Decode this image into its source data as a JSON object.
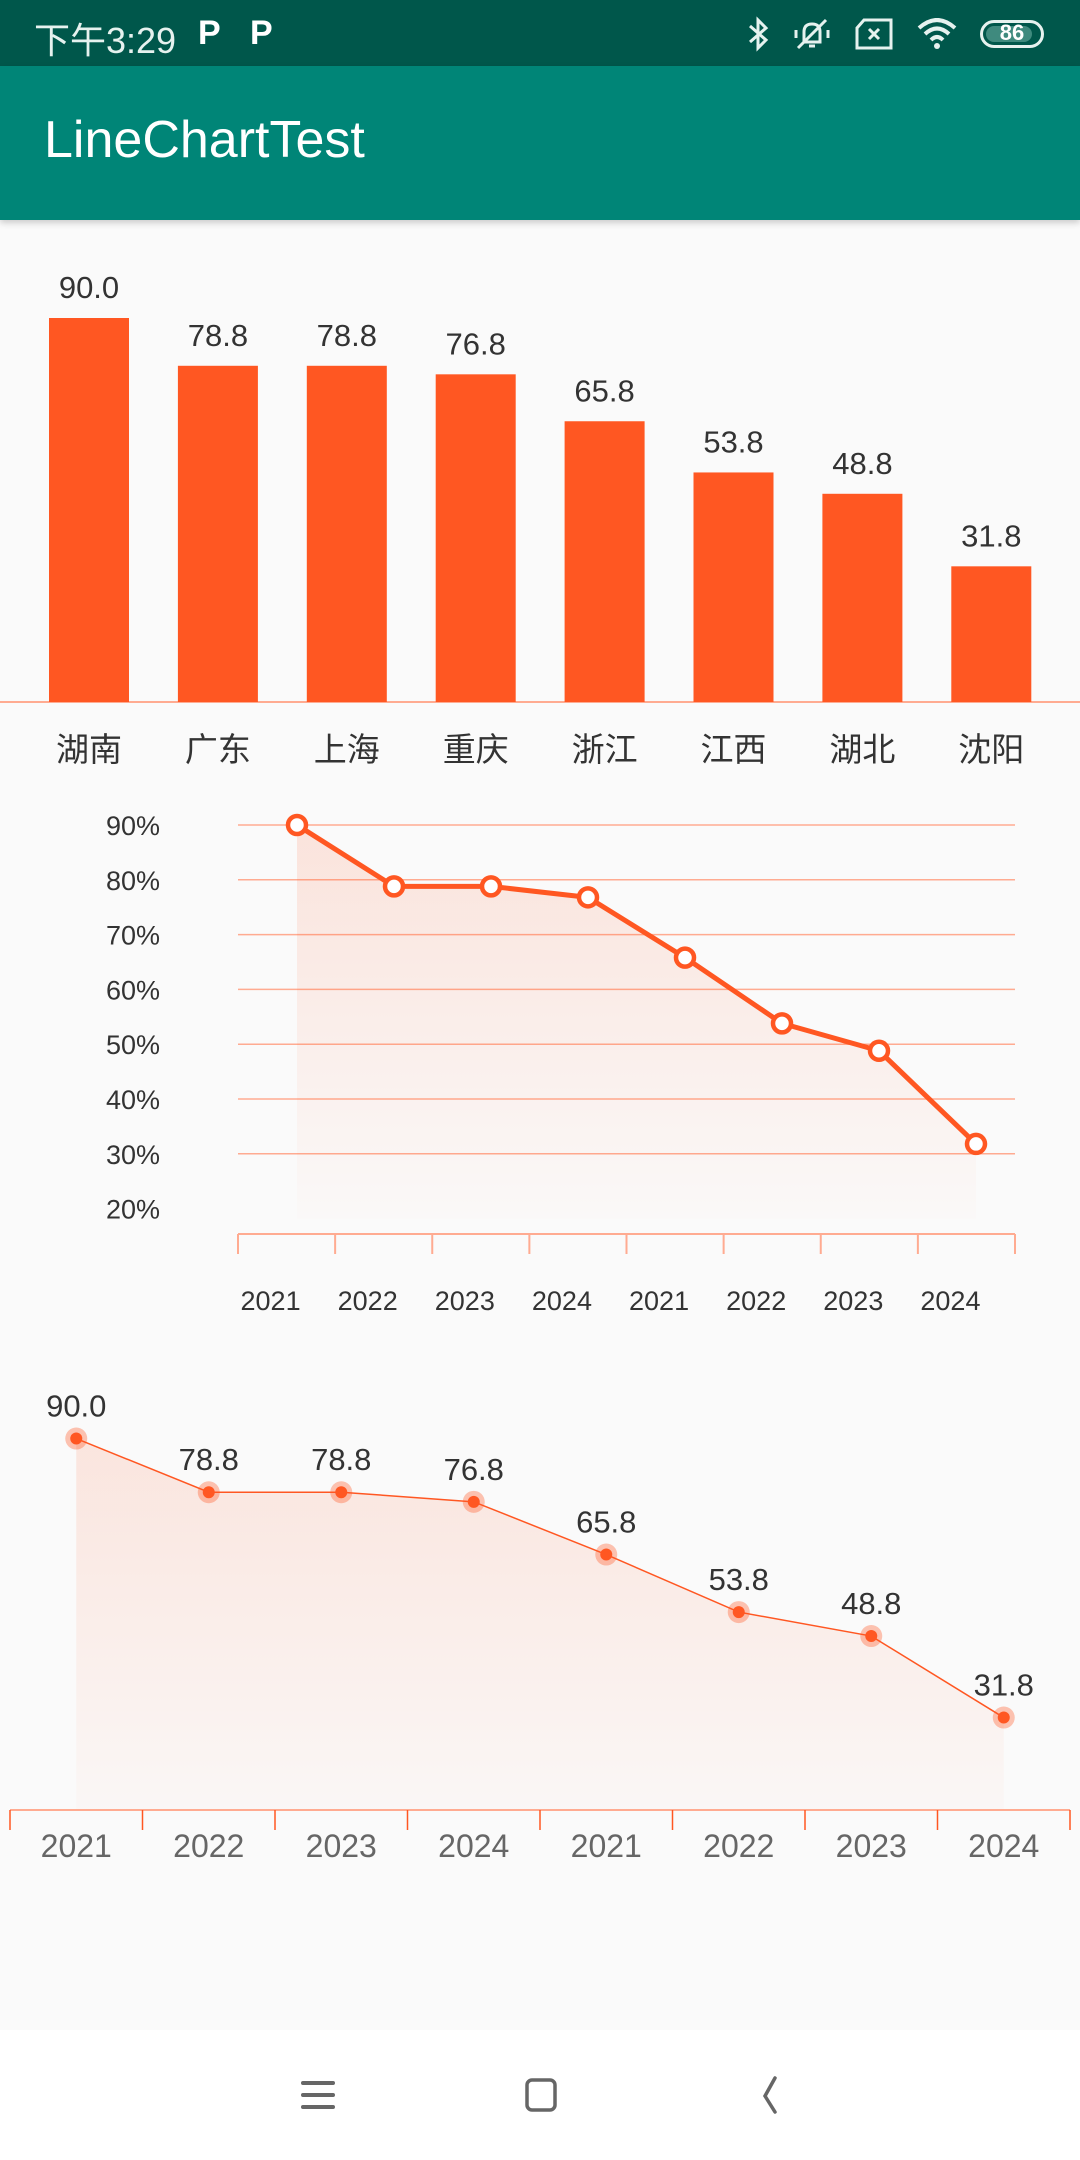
{
  "status_bar": {
    "time": "下午3:29",
    "notification_icons": [
      "p-app-icon",
      "p-app-icon"
    ],
    "p_glyph": "P",
    "right_icons": [
      "bluetooth-icon",
      "mute-vibrate-icon",
      "no-sim-icon",
      "wifi-icon"
    ],
    "battery_level": "86"
  },
  "app_bar": {
    "title": "LineChartTest"
  },
  "colors": {
    "accent": "#ff5722",
    "primary": "#008577",
    "primary_dark": "#00574b",
    "grid": "#ffab91",
    "text": "#333333"
  },
  "chart_data": [
    {
      "type": "bar",
      "title": "",
      "categories": [
        "湖南",
        "广东",
        "上海",
        "重庆",
        "浙江",
        "江西",
        "湖北",
        "沈阳"
      ],
      "values": [
        90.0,
        78.8,
        78.8,
        76.8,
        65.8,
        53.8,
        48.8,
        31.8
      ],
      "value_labels": [
        "90.0",
        "78.8",
        "78.8",
        "76.8",
        "65.8",
        "53.8",
        "48.8",
        "31.8"
      ],
      "ylim": [
        0,
        90
      ],
      "grid": false
    },
    {
      "type": "area",
      "title": "",
      "categories": [
        "2021",
        "2022",
        "2023",
        "2024",
        "2021",
        "2022",
        "2023",
        "2024"
      ],
      "values": [
        90.0,
        78.8,
        78.8,
        76.8,
        65.8,
        53.8,
        48.8,
        31.8
      ],
      "yticks": [
        "90%",
        "80%",
        "70%",
        "60%",
        "50%",
        "40%",
        "30%",
        "20%"
      ],
      "ylim": [
        20,
        90
      ],
      "grid": true,
      "markers": "hollow-circle"
    },
    {
      "type": "area",
      "title": "",
      "categories": [
        "2021",
        "2022",
        "2023",
        "2024",
        "2021",
        "2022",
        "2023",
        "2024"
      ],
      "values": [
        90.0,
        78.8,
        78.8,
        76.8,
        65.8,
        53.8,
        48.8,
        31.8
      ],
      "value_labels": [
        "90.0",
        "78.8",
        "78.8",
        "76.8",
        "65.8",
        "53.8",
        "48.8",
        "31.8"
      ],
      "ylim": [
        0,
        90
      ],
      "grid": false,
      "markers": "filled-dot-halo"
    }
  ],
  "nav_bar": {
    "buttons": [
      "menu-icon",
      "home-icon",
      "back-icon"
    ]
  }
}
